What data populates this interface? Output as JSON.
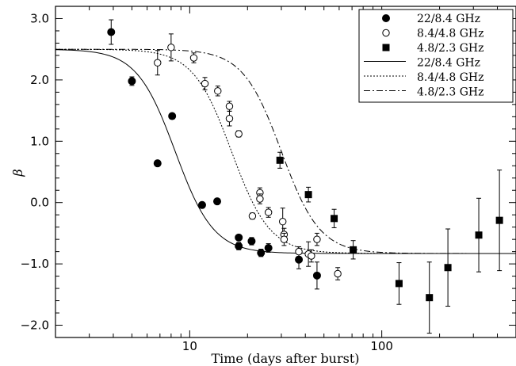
{
  "chart_data": {
    "type": "scatter",
    "xlabel": "Time (days after burst)",
    "ylabel": "β",
    "xscale": "log",
    "xlim": [
      2,
      500
    ],
    "ylim": [
      -2.2,
      3.2
    ],
    "xticks": [
      {
        "value": 10,
        "label": "10"
      },
      {
        "value": 100,
        "label": "100"
      }
    ],
    "yticks": [
      {
        "value": 3.0,
        "label": "3.0"
      },
      {
        "value": 2.0,
        "label": "2.0"
      },
      {
        "value": 1.0,
        "label": "1.0"
      },
      {
        "value": 0.0,
        "label": "0.0"
      },
      {
        "value": -1.0,
        "label": "−1.0"
      },
      {
        "value": -2.0,
        "label": "−2.0"
      }
    ],
    "legend_position": "top-right",
    "series": [
      {
        "name": "22/8.4 GHz",
        "marker": "filled-circle",
        "points": [
          {
            "x": 3.9,
            "y": 2.78,
            "err": 0.2
          },
          {
            "x": 5.0,
            "y": 1.98,
            "err": 0.07
          },
          {
            "x": 6.8,
            "y": 0.64,
            "err": 0
          },
          {
            "x": 8.1,
            "y": 1.41,
            "err": 0
          },
          {
            "x": 11.6,
            "y": -0.04,
            "err": 0
          },
          {
            "x": 13.9,
            "y": 0.02,
            "err": 0
          },
          {
            "x": 18.0,
            "y": -0.57,
            "err": 0
          },
          {
            "x": 18.0,
            "y": -0.71,
            "err": 0.06
          },
          {
            "x": 21.0,
            "y": -0.63,
            "err": 0.06
          },
          {
            "x": 23.5,
            "y": -0.82,
            "err": 0.06
          },
          {
            "x": 25.7,
            "y": -0.74,
            "err": 0.07
          },
          {
            "x": 37.0,
            "y": -0.93,
            "err": 0.15
          },
          {
            "x": 46.0,
            "y": -1.19,
            "err": 0.22
          }
        ]
      },
      {
        "name": "8.4/4.8 GHz",
        "marker": "open-circle",
        "points": [
          {
            "x": 6.8,
            "y": 2.28,
            "err": 0.2
          },
          {
            "x": 8.0,
            "y": 2.53,
            "err": 0.22
          },
          {
            "x": 10.5,
            "y": 2.36,
            "err": 0.08
          },
          {
            "x": 12.0,
            "y": 1.94,
            "err": 0.1
          },
          {
            "x": 14.0,
            "y": 1.82,
            "err": 0.08
          },
          {
            "x": 16.1,
            "y": 1.57,
            "err": 0.08
          },
          {
            "x": 16.1,
            "y": 1.37,
            "err": 0.12
          },
          {
            "x": 18.0,
            "y": 1.12,
            "err": 0.05
          },
          {
            "x": 21.2,
            "y": -0.22,
            "err": 0.05
          },
          {
            "x": 23.2,
            "y": 0.16,
            "err": 0.08
          },
          {
            "x": 23.2,
            "y": 0.06,
            "err": 0.08
          },
          {
            "x": 25.7,
            "y": -0.16,
            "err": 0.08
          },
          {
            "x": 30.5,
            "y": -0.31,
            "err": 0.22
          },
          {
            "x": 31.0,
            "y": -0.52,
            "err": 0.1
          },
          {
            "x": 31.0,
            "y": -0.6,
            "err": 0.1
          },
          {
            "x": 37.0,
            "y": -0.8,
            "err": 0.08
          },
          {
            "x": 41.5,
            "y": -0.84,
            "err": 0.2
          },
          {
            "x": 43.0,
            "y": -0.87,
            "err": 0.1
          },
          {
            "x": 46.0,
            "y": -0.6,
            "err": 0.1
          },
          {
            "x": 59.0,
            "y": -1.16,
            "err": 0.1
          }
        ]
      },
      {
        "name": "4.8/2.3 GHz",
        "marker": "filled-square",
        "points": [
          {
            "x": 29.5,
            "y": 0.69,
            "err": 0.13
          },
          {
            "x": 41.5,
            "y": 0.13,
            "err": 0.12
          },
          {
            "x": 56.5,
            "y": -0.26,
            "err": 0.15
          },
          {
            "x": 71.0,
            "y": -0.77,
            "err": 0.15
          },
          {
            "x": 123.0,
            "y": -1.32,
            "err": 0.34
          },
          {
            "x": 177.0,
            "y": -1.55,
            "err": 0.58
          },
          {
            "x": 221.0,
            "y": -1.06,
            "err": 0.63
          },
          {
            "x": 320.0,
            "y": -0.53,
            "err": 0.6
          },
          {
            "x": 410.0,
            "y": -0.29,
            "err": 0.82
          }
        ]
      }
    ],
    "model_curves": [
      {
        "name": "22/8.4 GHz",
        "style": "solid",
        "y_high": 2.5,
        "y_low": -0.83,
        "t_mid": 8.4,
        "width": 0.1
      },
      {
        "name": "8.4/4.8 GHz",
        "style": "dotted",
        "y_high": 2.5,
        "y_low": -0.83,
        "t_mid": 16.5,
        "width": 0.1
      },
      {
        "name": "4.8/2.3 GHz",
        "style": "dash-dot",
        "y_high": 2.5,
        "y_low": -0.83,
        "t_mid": 30.0,
        "width": 0.1
      }
    ]
  }
}
